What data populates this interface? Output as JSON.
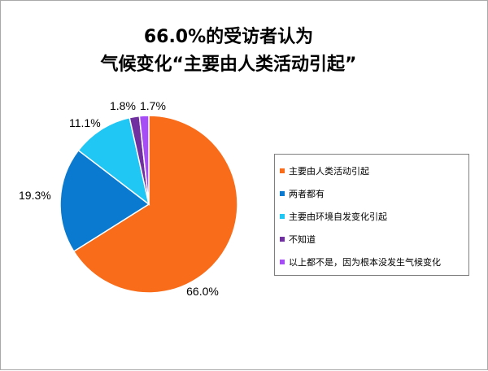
{
  "chart_data": {
    "type": "pie",
    "title_lines": [
      "66.0%的受访者认为",
      "气候变化“主要由人类活动引起”"
    ],
    "categories": [
      "主要由人类活动引起",
      "两者都有",
      "主要由环境自发变化引起",
      "不知道",
      "以上都不是，因为根本没发生气候变化"
    ],
    "values": [
      66.0,
      19.3,
      11.1,
      1.8,
      1.7
    ],
    "labels": [
      "66.0%",
      "19.3%",
      "11.1%",
      "1.8%",
      "1.7%"
    ],
    "colors": [
      "#f86c1a",
      "#0a7ad0",
      "#20c6f4",
      "#7030a0",
      "#a64df5"
    ],
    "legend_position": "right"
  }
}
